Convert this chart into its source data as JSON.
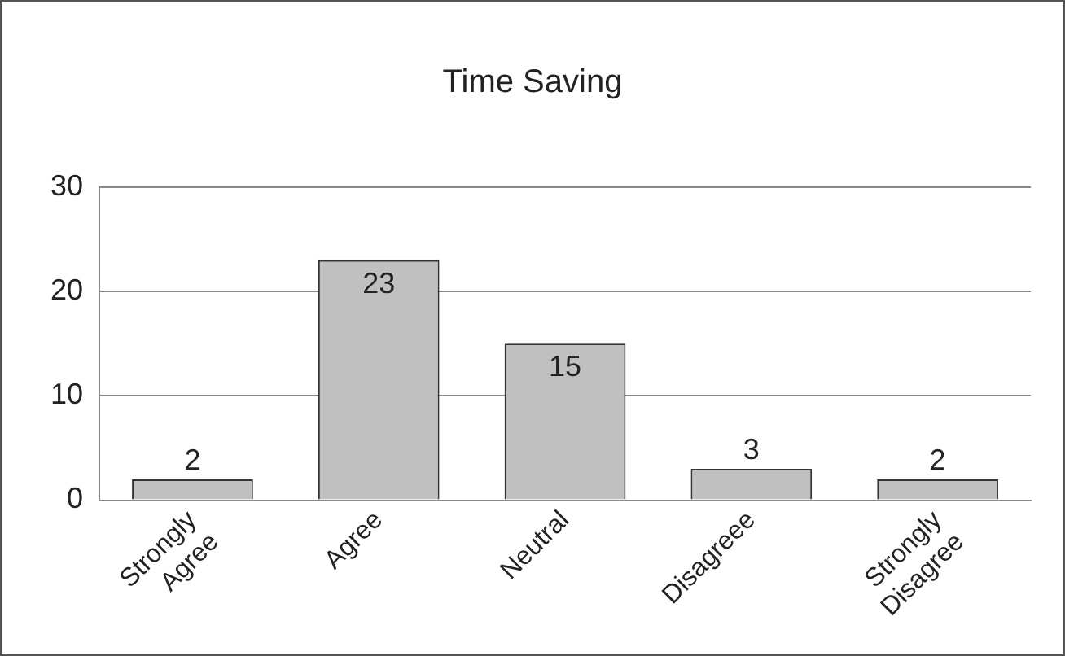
{
  "chart_data": {
    "type": "bar",
    "title": "Time Saving",
    "categories": [
      "Strongly Agree",
      "Agree",
      "Neutral",
      "Disagreee",
      "Strongly Disagree"
    ],
    "values": [
      2,
      23,
      15,
      3,
      2
    ],
    "color": "#c0c0c0",
    "ylim": [
      0,
      30
    ],
    "yticks": [
      0,
      10,
      20,
      30
    ],
    "grid": "y",
    "data_labels": true
  }
}
